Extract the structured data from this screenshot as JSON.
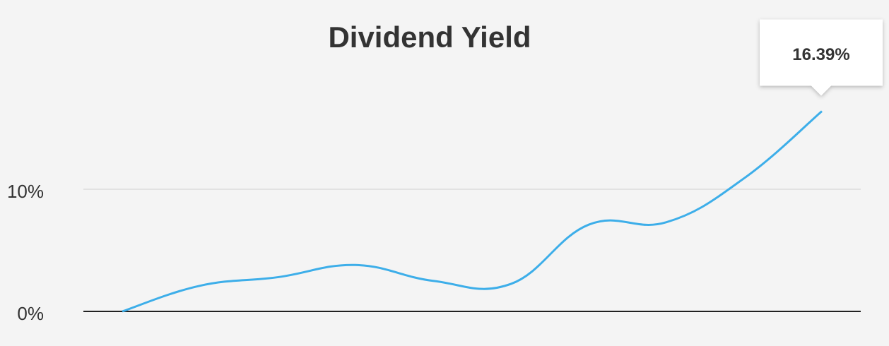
{
  "chart_data": {
    "type": "line",
    "title": "Dividend Yield",
    "categories": [
      null,
      null,
      null,
      null,
      null,
      null,
      null,
      null,
      null,
      null
    ],
    "series": [
      {
        "name": null,
        "color": "#3daee9",
        "values": [
          0,
          2.1,
          2.8,
          3.8,
          2.5,
          2.25,
          7.1,
          7.3,
          10.9,
          16.39
        ],
        "value_labels": [
          null,
          null,
          null,
          null,
          null,
          null,
          null,
          null,
          null,
          "16.39%"
        ]
      }
    ],
    "ylim": [
      0,
      18
    ],
    "yticks": [
      {
        "value": 0,
        "label": "0%"
      },
      {
        "value": 10,
        "label": "10%"
      }
    ],
    "grid": true
  }
}
